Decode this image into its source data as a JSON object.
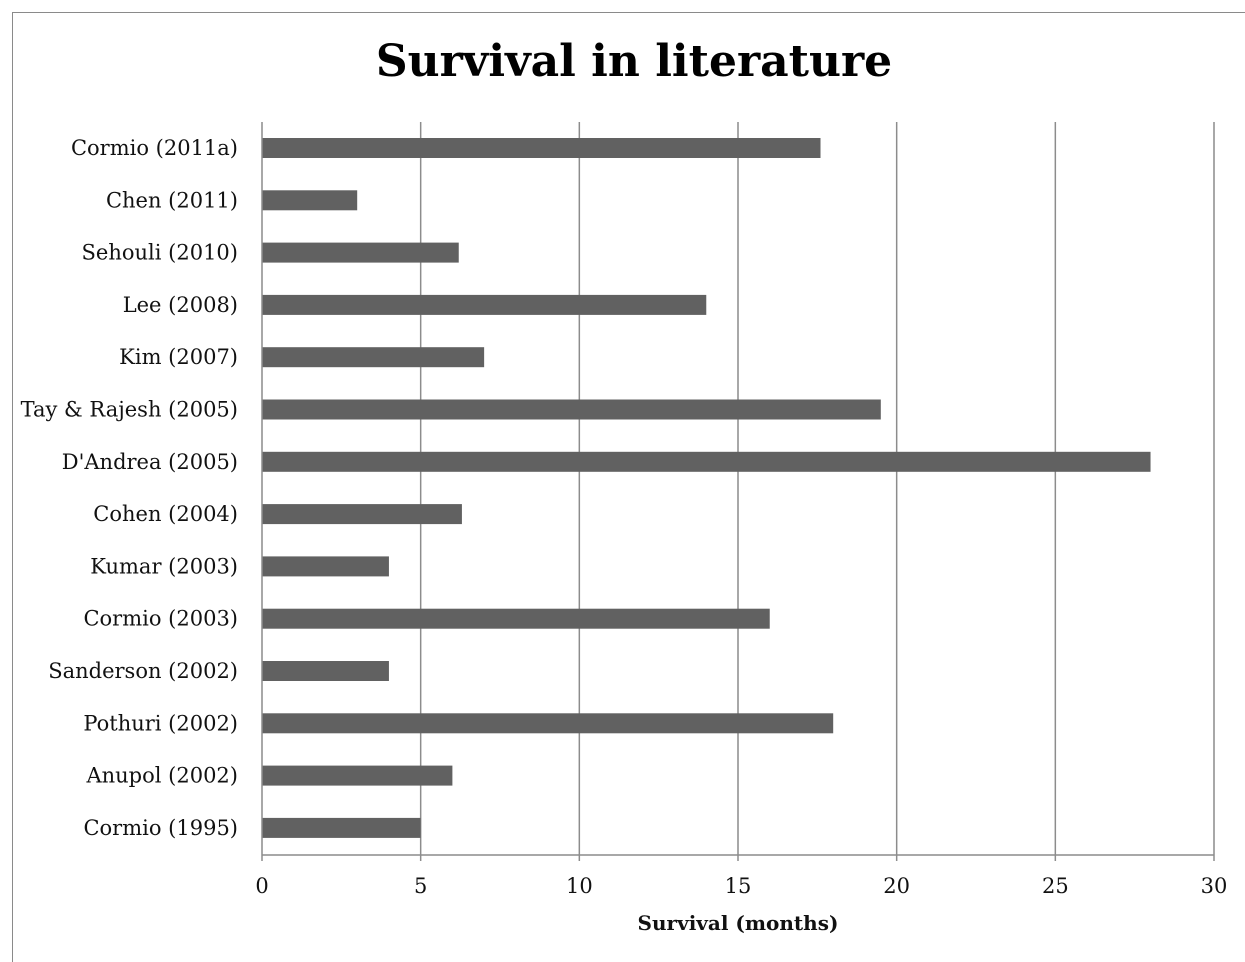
{
  "chart_data": {
    "type": "bar",
    "orientation": "horizontal",
    "title": "Survival in literature",
    "xlabel": "Survival (months)",
    "ylabel": "",
    "xlim": [
      0,
      30
    ],
    "xticks": [
      0,
      5,
      10,
      15,
      20,
      25,
      30
    ],
    "grid": "vertical",
    "legend": "none",
    "bar_color": "#616161",
    "gridline_color": "#8c8c8c",
    "categories": [
      "Cormio (2011a)",
      "Chen (2011)",
      "Sehouli (2010)",
      "Lee (2008)",
      "Kim (2007)",
      "Tay & Rajesh (2005)",
      "D'Andrea (2005)",
      "Cohen (2004)",
      "Kumar (2003)",
      "Cormio (2003)",
      "Sanderson (2002)",
      "Pothuri (2002)",
      "Anupol (2002)",
      "Cormio (1995)"
    ],
    "values": [
      17.6,
      3,
      6.2,
      14,
      7,
      19.5,
      28,
      6.3,
      4,
      16,
      4,
      18,
      6,
      5
    ]
  }
}
